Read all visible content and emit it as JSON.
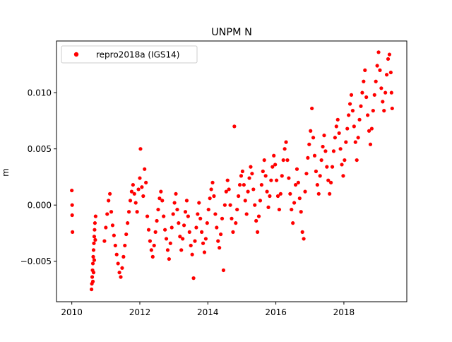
{
  "chart_data": {
    "type": "scatter",
    "title": "UNPM N",
    "xlabel": "",
    "ylabel": "m",
    "xlim": [
      2009.55,
      2019.85
    ],
    "ylim": [
      -0.0086,
      0.0146
    ],
    "x_ticks": [
      2010,
      2012,
      2014,
      2016,
      2018
    ],
    "x_tick_labels": [
      "2010",
      "2012",
      "2014",
      "2016",
      "2018"
    ],
    "y_ticks": [
      -0.005,
      0.0,
      0.005,
      0.01
    ],
    "y_tick_labels": [
      "−0.005",
      "0.000",
      "0.005",
      "0.010"
    ],
    "grid": false,
    "legend_position": "top-left",
    "colors": {
      "series": "#ff0000",
      "axes": "#000000",
      "background": "#ffffff"
    },
    "series": [
      {
        "name": "repro2018a (IGS14)",
        "marker": "circle",
        "points": [
          [
            2010.0,
            0.0013
          ],
          [
            2010.01,
            0.0
          ],
          [
            2010.01,
            -0.0009
          ],
          [
            2010.02,
            -0.0024
          ],
          [
            2010.58,
            -0.0075
          ],
          [
            2010.59,
            -0.007
          ],
          [
            2010.6,
            -0.0064
          ],
          [
            2010.61,
            -0.0058
          ],
          [
            2010.62,
            -0.0052
          ],
          [
            2010.63,
            -0.0046
          ],
          [
            2010.64,
            -0.004
          ],
          [
            2010.65,
            -0.0034
          ],
          [
            2010.66,
            -0.0028
          ],
          [
            2010.67,
            -0.0022
          ],
          [
            2010.68,
            -0.0016
          ],
          [
            2010.7,
            -0.001
          ],
          [
            2010.64,
            -0.006
          ],
          [
            2010.62,
            -0.0068
          ],
          [
            2010.66,
            -0.0049
          ],
          [
            2010.69,
            -0.0031
          ],
          [
            2010.96,
            -0.0032
          ],
          [
            2011.0,
            -0.002
          ],
          [
            2011.04,
            -0.0008
          ],
          [
            2011.08,
            0.0004
          ],
          [
            2011.12,
            0.001
          ],
          [
            2011.16,
            -0.0006
          ],
          [
            2011.2,
            -0.0018
          ],
          [
            2011.24,
            -0.0027
          ],
          [
            2011.28,
            -0.0036
          ],
          [
            2011.32,
            -0.0044
          ],
          [
            2011.36,
            -0.0052
          ],
          [
            2011.4,
            -0.006
          ],
          [
            2011.44,
            -0.0064
          ],
          [
            2011.48,
            -0.0056
          ],
          [
            2011.52,
            -0.0046
          ],
          [
            2011.56,
            -0.0036
          ],
          [
            2011.6,
            -0.0026
          ],
          [
            2011.64,
            -0.0016
          ],
          [
            2011.68,
            -0.0006
          ],
          [
            2011.72,
            0.0004
          ],
          [
            2011.76,
            0.0012
          ],
          [
            2011.8,
            0.0018
          ],
          [
            2011.84,
            0.001
          ],
          [
            2011.88,
            0.0002
          ],
          [
            2011.92,
            -0.0006
          ],
          [
            2011.96,
            0.0014
          ],
          [
            2012.0,
            0.0024
          ],
          [
            2012.02,
            0.005
          ],
          [
            2012.06,
            0.0016
          ],
          [
            2012.1,
            0.0008
          ],
          [
            2012.14,
            0.0032
          ],
          [
            2012.18,
            0.002
          ],
          [
            2012.22,
            -0.001
          ],
          [
            2012.26,
            -0.0022
          ],
          [
            2012.3,
            -0.0032
          ],
          [
            2012.34,
            -0.004
          ],
          [
            2012.38,
            -0.0046
          ],
          [
            2012.42,
            -0.0036
          ],
          [
            2012.46,
            -0.0024
          ],
          [
            2012.5,
            -0.0014
          ],
          [
            2012.54,
            -0.0004
          ],
          [
            2012.58,
            0.0006
          ],
          [
            2012.62,
            0.0012
          ],
          [
            2012.66,
            0.0004
          ],
          [
            2012.7,
            -0.001
          ],
          [
            2012.74,
            -0.0022
          ],
          [
            2012.78,
            -0.003
          ],
          [
            2012.82,
            -0.004
          ],
          [
            2012.86,
            -0.0048
          ],
          [
            2012.9,
            -0.0034
          ],
          [
            2012.94,
            -0.002
          ],
          [
            2012.98,
            -0.0008
          ],
          [
            2013.02,
            0.0002
          ],
          [
            2013.06,
            0.001
          ],
          [
            2013.1,
            -0.0004
          ],
          [
            2013.14,
            -0.0016
          ],
          [
            2013.18,
            -0.0028
          ],
          [
            2013.22,
            -0.004
          ],
          [
            2013.26,
            -0.003
          ],
          [
            2013.3,
            -0.0018
          ],
          [
            2013.34,
            -0.0006
          ],
          [
            2013.38,
            0.0004
          ],
          [
            2013.42,
            -0.001
          ],
          [
            2013.46,
            -0.0024
          ],
          [
            2013.5,
            -0.0036
          ],
          [
            2013.54,
            -0.0044
          ],
          [
            2013.58,
            -0.0065
          ],
          [
            2013.62,
            -0.0032
          ],
          [
            2013.66,
            -0.002
          ],
          [
            2013.7,
            -0.0008
          ],
          [
            2013.74,
            0.0002
          ],
          [
            2013.78,
            -0.0012
          ],
          [
            2013.82,
            -0.0024
          ],
          [
            2013.86,
            -0.0034
          ],
          [
            2013.9,
            -0.0042
          ],
          [
            2013.94,
            -0.003
          ],
          [
            2013.98,
            -0.0016
          ],
          [
            2014.02,
            -0.0004
          ],
          [
            2014.06,
            0.0006
          ],
          [
            2014.1,
            0.0014
          ],
          [
            2014.14,
            0.002
          ],
          [
            2014.18,
            0.0008
          ],
          [
            2014.22,
            -0.0008
          ],
          [
            2014.26,
            -0.002
          ],
          [
            2014.3,
            -0.0032
          ],
          [
            2014.34,
            -0.0038
          ],
          [
            2014.38,
            -0.0026
          ],
          [
            2014.42,
            -0.0012
          ],
          [
            2014.46,
            -0.0058
          ],
          [
            2014.5,
            0.0
          ],
          [
            2014.54,
            0.0012
          ],
          [
            2014.58,
            0.0022
          ],
          [
            2014.62,
            0.0014
          ],
          [
            2014.66,
            0.0
          ],
          [
            2014.7,
            -0.0012
          ],
          [
            2014.74,
            -0.0024
          ],
          [
            2014.78,
            0.007
          ],
          [
            2014.82,
            -0.0016
          ],
          [
            2014.86,
            -0.0004
          ],
          [
            2014.9,
            0.0008
          ],
          [
            2014.94,
            0.0018
          ],
          [
            2014.98,
            0.0026
          ],
          [
            2015.02,
            0.003
          ],
          [
            2015.06,
            0.0018
          ],
          [
            2015.1,
            0.0004
          ],
          [
            2015.14,
            -0.0008
          ],
          [
            2015.18,
            0.0012
          ],
          [
            2015.22,
            0.0024
          ],
          [
            2015.26,
            0.0034
          ],
          [
            2015.3,
            0.0028
          ],
          [
            2015.34,
            0.0014
          ],
          [
            2015.38,
            0.0
          ],
          [
            2015.42,
            -0.0014
          ],
          [
            2015.46,
            -0.0024
          ],
          [
            2015.5,
            -0.001
          ],
          [
            2015.54,
            0.0004
          ],
          [
            2015.58,
            0.0018
          ],
          [
            2015.62,
            0.003
          ],
          [
            2015.66,
            0.004
          ],
          [
            2015.7,
            0.0026
          ],
          [
            2015.74,
            0.0012
          ],
          [
            2015.78,
            -0.0002
          ],
          [
            2015.82,
            0.0008
          ],
          [
            2015.86,
            0.0022
          ],
          [
            2015.9,
            0.0034
          ],
          [
            2015.94,
            0.0044
          ],
          [
            2015.98,
            0.0036
          ],
          [
            2016.02,
            0.0022
          ],
          [
            2016.06,
            0.0008
          ],
          [
            2016.1,
            -0.0004
          ],
          [
            2016.14,
            0.001
          ],
          [
            2016.18,
            0.0026
          ],
          [
            2016.22,
            0.004
          ],
          [
            2016.26,
            0.005
          ],
          [
            2016.3,
            0.0056
          ],
          [
            2016.34,
            0.004
          ],
          [
            2016.38,
            0.0024
          ],
          [
            2016.42,
            0.001
          ],
          [
            2016.46,
            -0.0004
          ],
          [
            2016.5,
            -0.0016
          ],
          [
            2016.54,
            0.0002
          ],
          [
            2016.58,
            0.0018
          ],
          [
            2016.62,
            0.0032
          ],
          [
            2016.66,
            0.002
          ],
          [
            2016.7,
            0.0006
          ],
          [
            2016.74,
            -0.0006
          ],
          [
            2016.78,
            -0.0024
          ],
          [
            2016.82,
            -0.003
          ],
          [
            2016.86,
            0.0012
          ],
          [
            2016.9,
            0.0028
          ],
          [
            2016.94,
            0.0042
          ],
          [
            2016.98,
            0.0054
          ],
          [
            2017.02,
            0.0066
          ],
          [
            2017.06,
            0.0086
          ],
          [
            2017.1,
            0.006
          ],
          [
            2017.14,
            0.0044
          ],
          [
            2017.18,
            0.003
          ],
          [
            2017.22,
            0.0018
          ],
          [
            2017.26,
            0.001
          ],
          [
            2017.3,
            0.0026
          ],
          [
            2017.34,
            0.004
          ],
          [
            2017.38,
            0.0052
          ],
          [
            2017.42,
            0.0062
          ],
          [
            2017.46,
            0.0048
          ],
          [
            2017.5,
            0.0034
          ],
          [
            2017.54,
            0.0022
          ],
          [
            2017.58,
            0.001
          ],
          [
            2017.62,
            0.002
          ],
          [
            2017.66,
            0.0034
          ],
          [
            2017.7,
            0.0048
          ],
          [
            2017.74,
            0.006
          ],
          [
            2017.78,
            0.007
          ],
          [
            2017.82,
            0.0076
          ],
          [
            2017.86,
            0.0064
          ],
          [
            2017.9,
            0.005
          ],
          [
            2017.94,
            0.0036
          ],
          [
            2017.98,
            0.0026
          ],
          [
            2018.02,
            0.004
          ],
          [
            2018.06,
            0.0056
          ],
          [
            2018.1,
            0.0068
          ],
          [
            2018.14,
            0.008
          ],
          [
            2018.18,
            0.009
          ],
          [
            2018.22,
            0.0098
          ],
          [
            2018.26,
            0.0084
          ],
          [
            2018.3,
            0.007
          ],
          [
            2018.34,
            0.0056
          ],
          [
            2018.38,
            0.004
          ],
          [
            2018.42,
            0.006
          ],
          [
            2018.46,
            0.0076
          ],
          [
            2018.5,
            0.0088
          ],
          [
            2018.54,
            0.01
          ],
          [
            2018.58,
            0.011
          ],
          [
            2018.62,
            0.012
          ],
          [
            2018.66,
            0.0096
          ],
          [
            2018.7,
            0.008
          ],
          [
            2018.74,
            0.0066
          ],
          [
            2018.78,
            0.0054
          ],
          [
            2018.82,
            0.0068
          ],
          [
            2018.86,
            0.0084
          ],
          [
            2018.9,
            0.0098
          ],
          [
            2018.94,
            0.011
          ],
          [
            2018.98,
            0.0124
          ],
          [
            2019.02,
            0.0136
          ],
          [
            2019.06,
            0.012
          ],
          [
            2019.1,
            0.0104
          ],
          [
            2019.14,
            0.0092
          ],
          [
            2019.18,
            0.0084
          ],
          [
            2019.22,
            0.01
          ],
          [
            2019.26,
            0.0116
          ],
          [
            2019.3,
            0.013
          ],
          [
            2019.34,
            0.0134
          ],
          [
            2019.38,
            0.0118
          ],
          [
            2019.4,
            0.01
          ],
          [
            2019.42,
            0.0086
          ]
        ]
      }
    ]
  }
}
